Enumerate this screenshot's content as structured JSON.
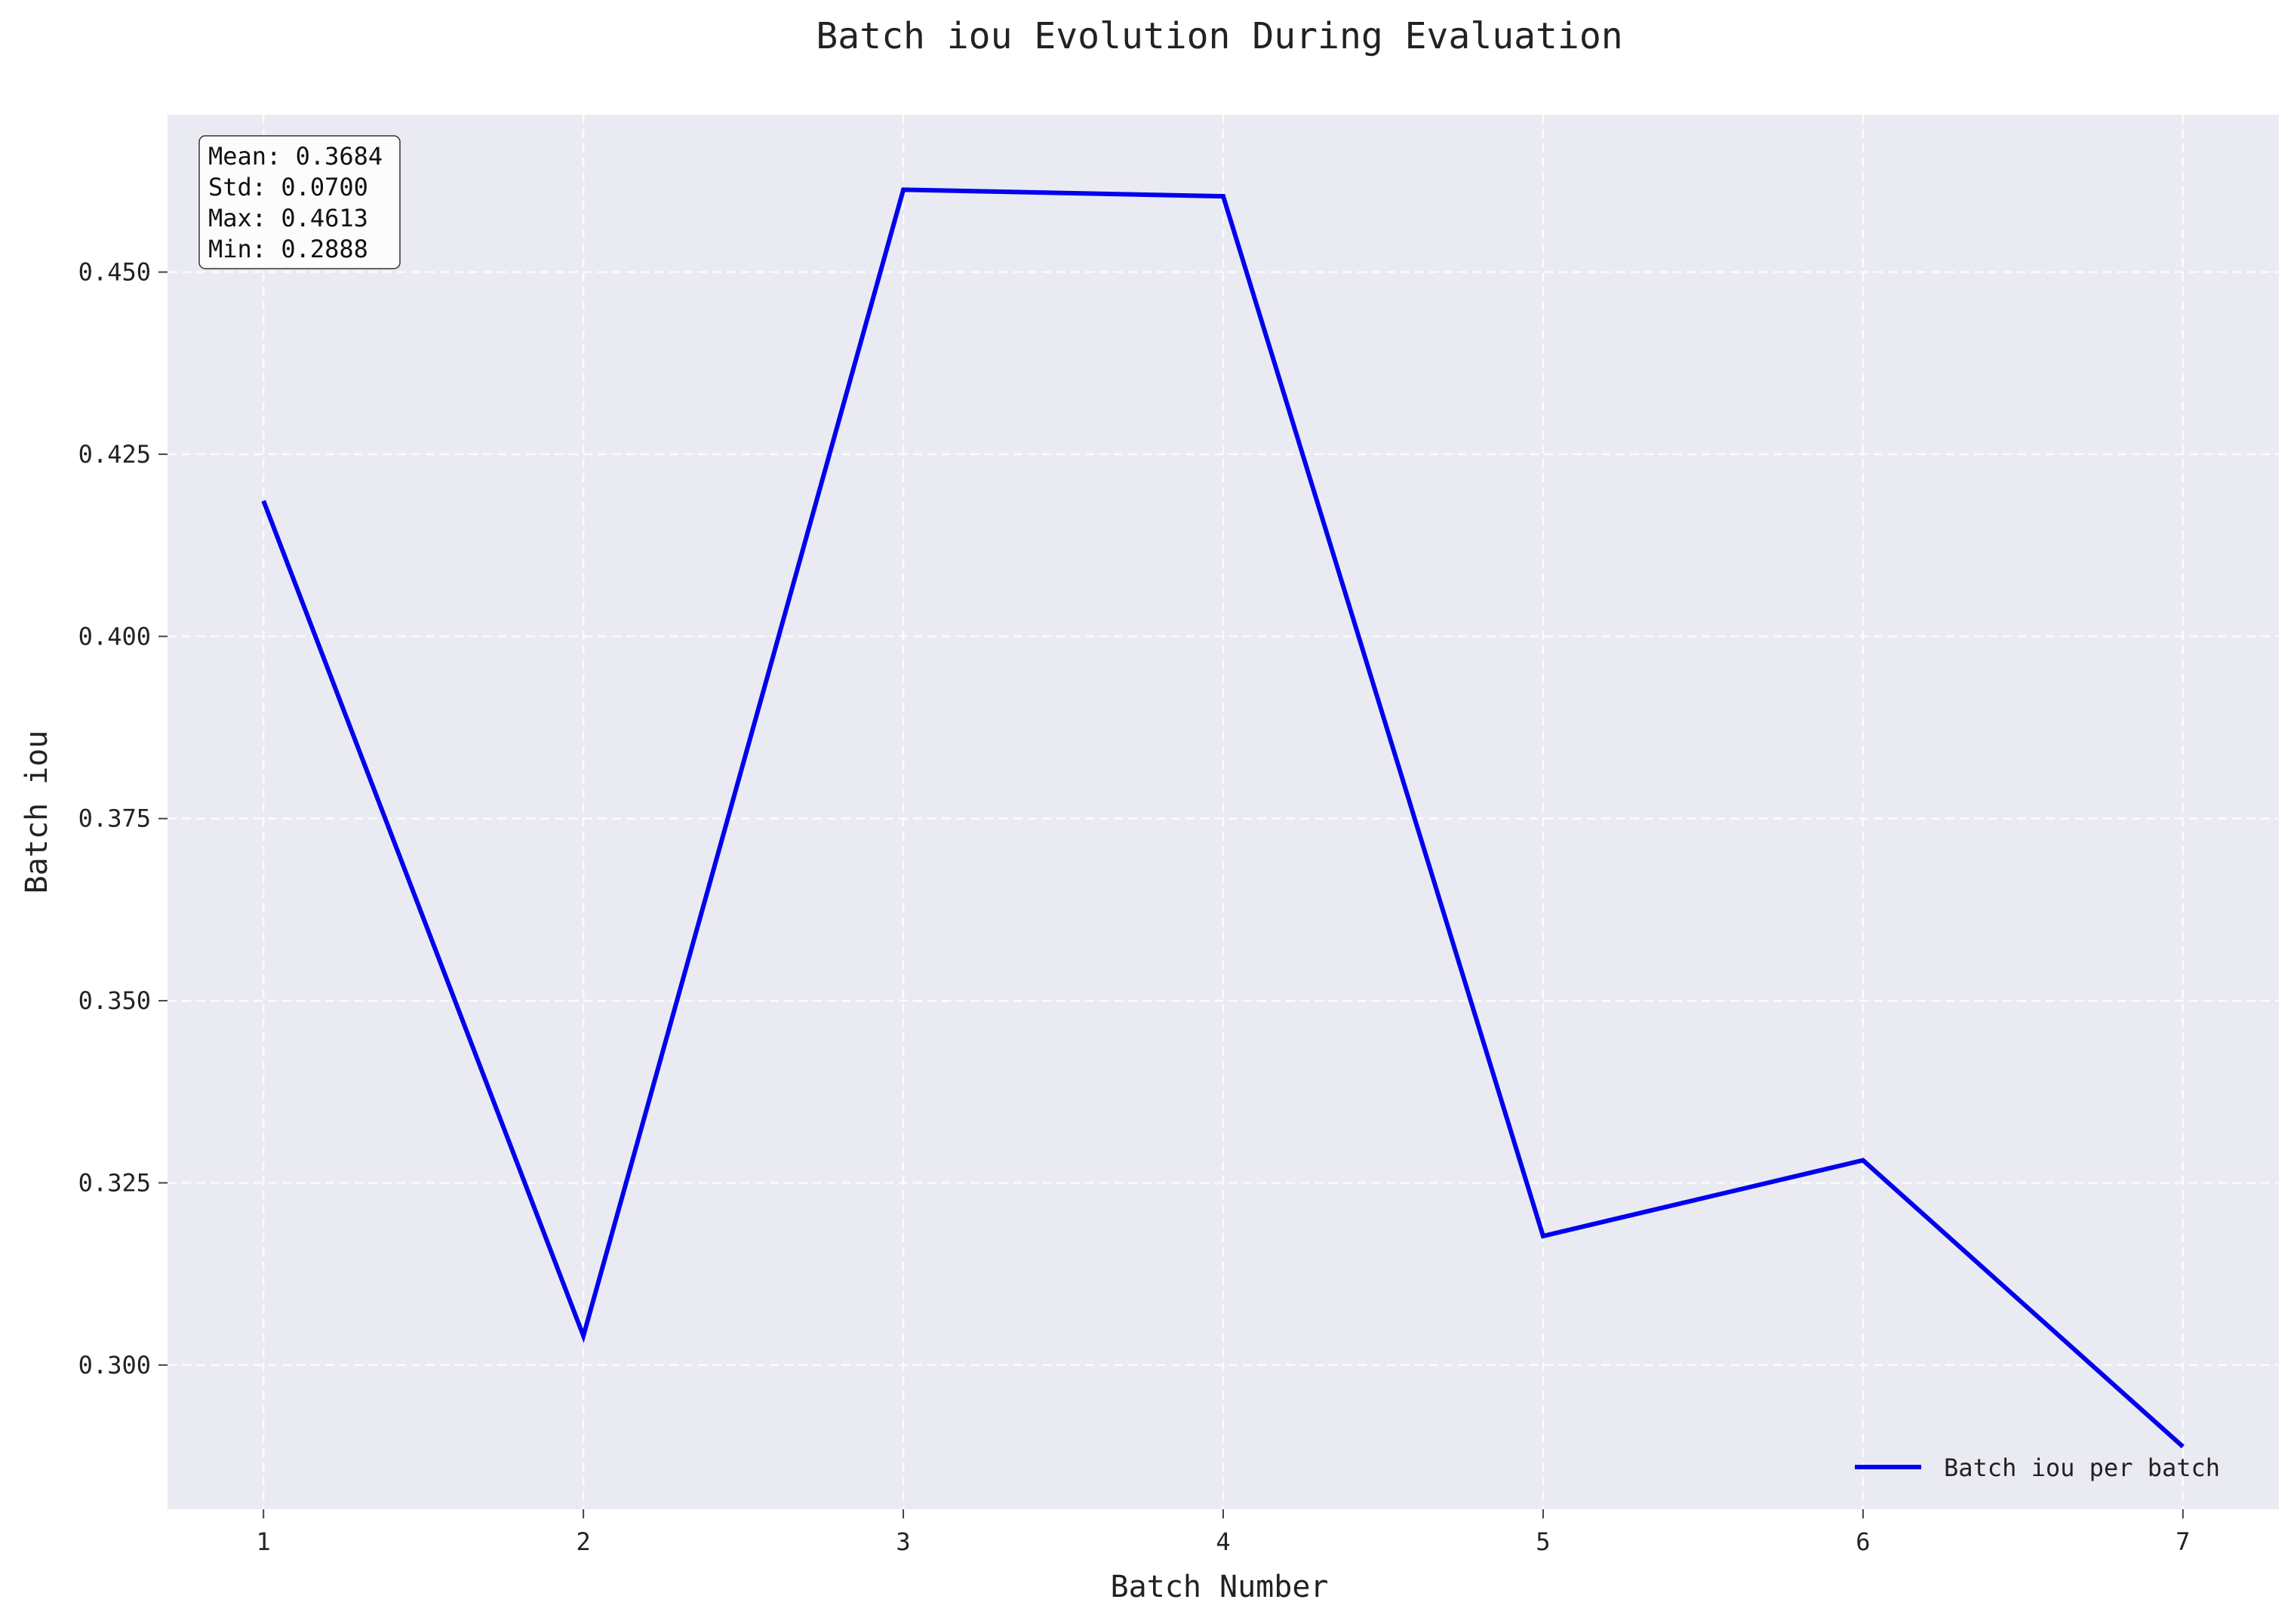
{
  "chart_data": {
    "type": "line",
    "title": "Batch iou Evolution During Evaluation",
    "xlabel": "Batch Number",
    "ylabel": "Batch iou",
    "x": [
      1,
      2,
      3,
      4,
      5,
      6,
      7
    ],
    "series": [
      {
        "name": "Batch iou per batch",
        "values": [
          0.4186,
          0.304,
          0.4613,
          0.4604,
          0.3177,
          0.3281,
          0.2888
        ],
        "color": "#0000ee"
      }
    ],
    "xlim": [
      0.7,
      7.3
    ],
    "ylim": [
      0.2802,
      0.4716
    ],
    "x_ticks": [
      "1",
      "2",
      "3",
      "4",
      "5",
      "6",
      "7"
    ],
    "y_ticks": [
      "0.300",
      "0.325",
      "0.350",
      "0.375",
      "0.400",
      "0.425",
      "0.450"
    ],
    "grid": true,
    "legend_position": "lower-right",
    "stats": [
      "Mean: 0.3684",
      "Std: 0.0700",
      "Max: 0.4613",
      "Min: 0.2888"
    ],
    "colors": {
      "plot_background": "#eaeaf2",
      "grid": "#ffffff",
      "line": "#0000ee"
    }
  }
}
